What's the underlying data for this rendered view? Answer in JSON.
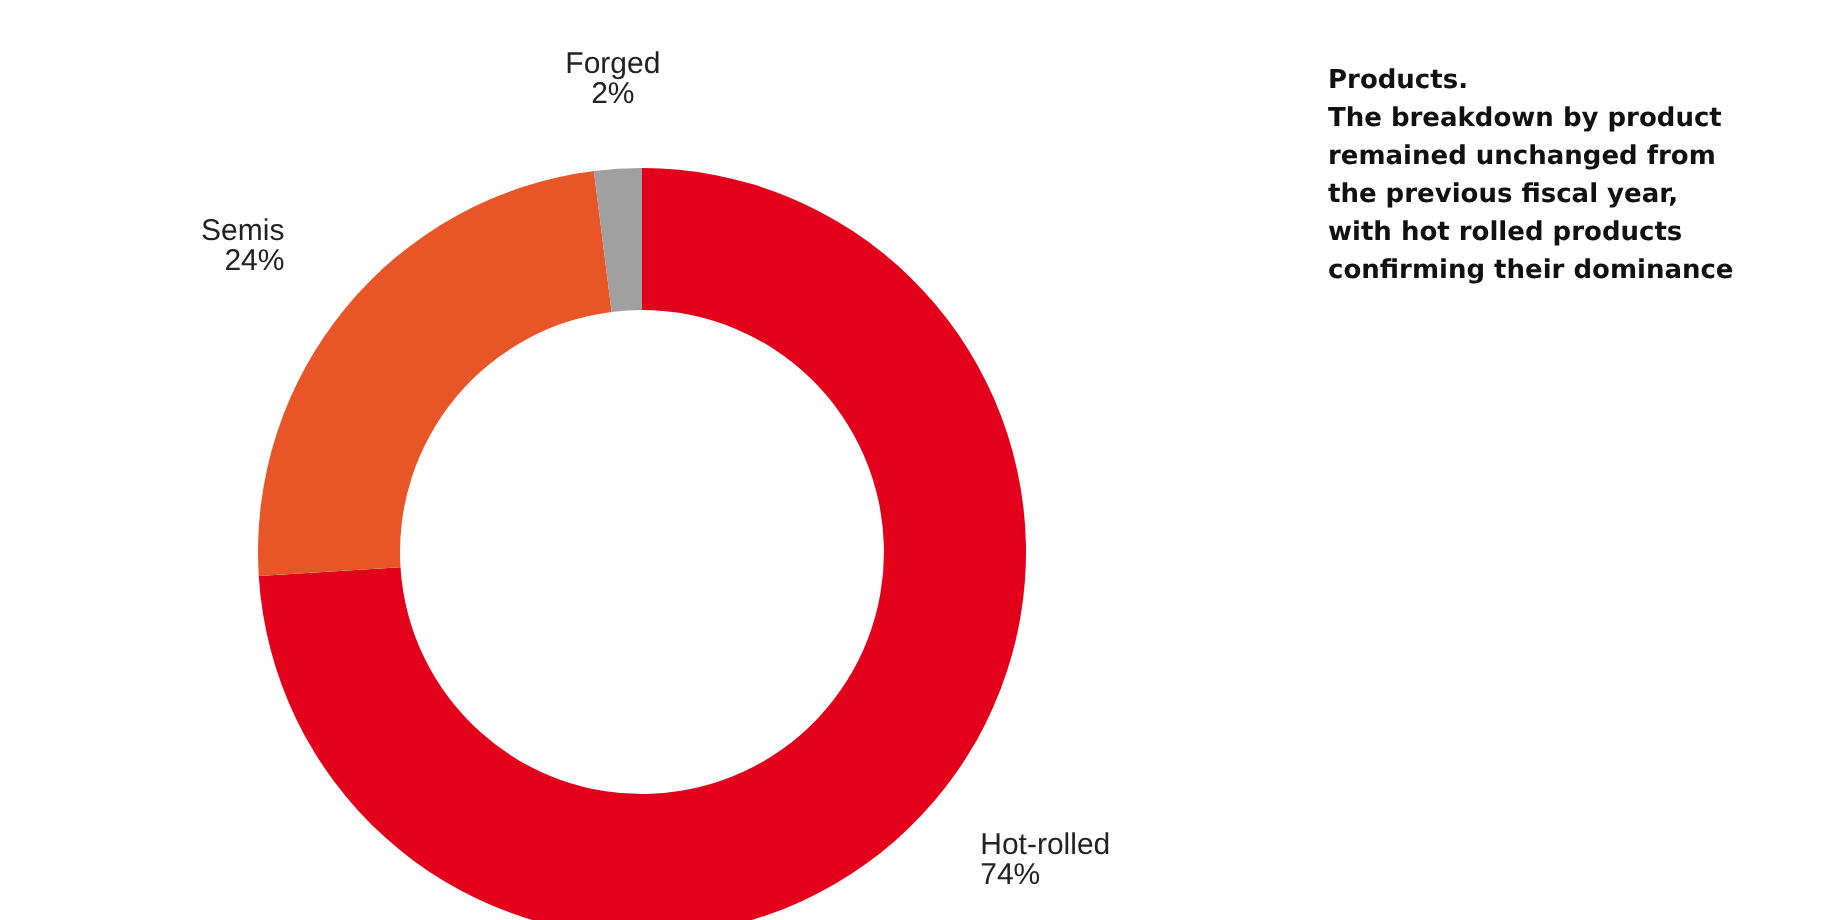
{
  "chart_data": {
    "type": "donut",
    "title": "Products.",
    "subtitle": "The breakdown by product remained unchanged from the previous fiscal year, with hot rolled products confirming their dominance",
    "categories": [
      "Hot-rolled",
      "Semis",
      "Forged"
    ],
    "values": [
      74,
      24,
      2
    ],
    "value_labels": [
      "74%",
      "24%",
      "2%"
    ],
    "colors": [
      "#e2001a",
      "#e85526",
      "#a0a0a0"
    ]
  }
}
